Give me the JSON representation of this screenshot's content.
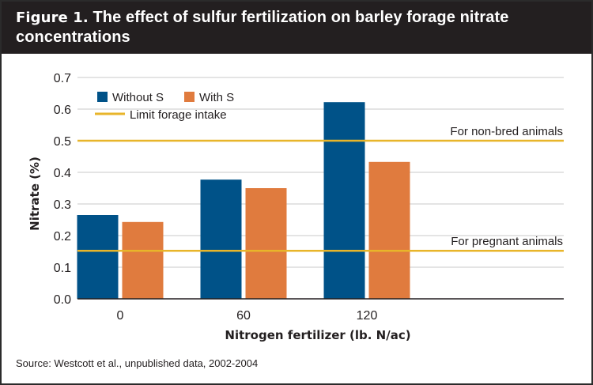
{
  "header": {
    "figure_label": "Figure 1.",
    "title": "The effect of sulfur fertilization on barley forage nitrate concentrations"
  },
  "source": "Source: Westcott et al., unpublished data, 2002-2004",
  "colors": {
    "without_s": "#005288",
    "with_s": "#e07b3e",
    "limit_line": "#e8b52a",
    "header_bg": "#231f20"
  },
  "chart_data": {
    "type": "bar",
    "xlabel": "Nitrogen fertilizer (lb. N/ac)",
    "ylabel": "Nitrate (%)",
    "categories": [
      "0",
      "60",
      "120"
    ],
    "series": [
      {
        "name": "Without S",
        "values": [
          0.265,
          0.377,
          0.622
        ]
      },
      {
        "name": "With S",
        "values": [
          0.243,
          0.35,
          0.433
        ]
      }
    ],
    "ylim": [
      0,
      0.7
    ],
    "yticks": [
      "0.0",
      "0.1",
      "0.2",
      "0.3",
      "0.4",
      "0.5",
      "0.6",
      "0.7"
    ],
    "grid": true,
    "legend": {
      "placement": "top-left",
      "items": [
        "Without S",
        "With S"
      ],
      "line_item": "Limit forage intake"
    },
    "reference_lines": [
      {
        "label": "For non-bred animals",
        "value": 0.5
      },
      {
        "label": "For pregnant animals",
        "value": 0.152
      }
    ]
  }
}
